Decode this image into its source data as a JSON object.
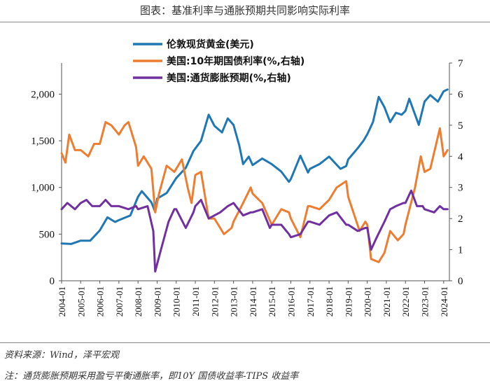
{
  "header": {
    "title": "图表：基准利率与通胀预期共同影响实际利率"
  },
  "footer": {
    "source": "资料来源：Wind，泽平宏观",
    "note": "注：通货膨胀预期采用盈亏平衡通胀率，即10Y 国债收益率-TIPS 收益率"
  },
  "chart_data": {
    "type": "line",
    "title": "图表：基准利率与通胀预期共同影响实际利率",
    "x_labels": [
      "2004-01",
      "2005-01",
      "2006-01",
      "2007-01",
      "2008-01",
      "2009-01",
      "2010-01",
      "2011-01",
      "2012-01",
      "2013-01",
      "2014-01",
      "2015-01",
      "2016-01",
      "2017-01",
      "2018-01",
      "2019-01",
      "2020-01",
      "2021-01",
      "2022-01",
      "2023-01",
      "2024-01"
    ],
    "x_range": [
      2004.0,
      2024.3
    ],
    "y_left": {
      "min": 0,
      "max": 2333.33,
      "ticks": [
        0,
        500,
        1000,
        1500,
        2000
      ],
      "tick_labels": [
        "0",
        "500",
        "1,000",
        "1,500",
        "2,000"
      ]
    },
    "y_right": {
      "min": 0,
      "max": 7,
      "ticks": [
        0,
        1,
        2,
        3,
        4,
        5,
        6,
        7
      ],
      "tick_labels": [
        "0",
        "1",
        "2",
        "3",
        "4",
        "5",
        "6",
        "7"
      ]
    },
    "series": [
      {
        "name": "伦敦现货黄金(美元)",
        "axis": "left",
        "color": "#1f77b4",
        "points": [
          [
            2004.0,
            400
          ],
          [
            2004.5,
            395
          ],
          [
            2005.0,
            430
          ],
          [
            2005.5,
            430
          ],
          [
            2006.0,
            540
          ],
          [
            2006.4,
            680
          ],
          [
            2006.8,
            630
          ],
          [
            2007.0,
            650
          ],
          [
            2007.6,
            700
          ],
          [
            2008.0,
            900
          ],
          [
            2008.2,
            960
          ],
          [
            2008.7,
            840
          ],
          [
            2008.9,
            740
          ],
          [
            2009.0,
            880
          ],
          [
            2009.5,
            940
          ],
          [
            2010.0,
            1100
          ],
          [
            2010.5,
            1210
          ],
          [
            2010.9,
            1390
          ],
          [
            2011.3,
            1500
          ],
          [
            2011.7,
            1780
          ],
          [
            2012.0,
            1660
          ],
          [
            2012.4,
            1590
          ],
          [
            2012.7,
            1740
          ],
          [
            2013.0,
            1670
          ],
          [
            2013.3,
            1450
          ],
          [
            2013.5,
            1250
          ],
          [
            2013.8,
            1330
          ],
          [
            2014.0,
            1240
          ],
          [
            2014.5,
            1310
          ],
          [
            2015.0,
            1250
          ],
          [
            2015.5,
            1170
          ],
          [
            2015.9,
            1060
          ],
          [
            2016.0,
            1090
          ],
          [
            2016.5,
            1340
          ],
          [
            2016.9,
            1160
          ],
          [
            2017.0,
            1200
          ],
          [
            2017.5,
            1250
          ],
          [
            2018.0,
            1330
          ],
          [
            2018.6,
            1200
          ],
          [
            2018.9,
            1230
          ],
          [
            2019.0,
            1300
          ],
          [
            2019.5,
            1420
          ],
          [
            2019.8,
            1500
          ],
          [
            2020.0,
            1570
          ],
          [
            2020.3,
            1700
          ],
          [
            2020.6,
            1970
          ],
          [
            2020.9,
            1860
          ],
          [
            2021.2,
            1700
          ],
          [
            2021.5,
            1800
          ],
          [
            2021.8,
            1780
          ],
          [
            2022.0,
            1820
          ],
          [
            2022.2,
            1950
          ],
          [
            2022.7,
            1670
          ],
          [
            2023.0,
            1920
          ],
          [
            2023.3,
            1990
          ],
          [
            2023.7,
            1920
          ],
          [
            2024.0,
            2030
          ],
          [
            2024.2,
            2050
          ]
        ]
      },
      {
        "name": "美国:10年期国债利率(%,右轴)",
        "axis": "right",
        "color": "#ed7d31",
        "points": [
          [
            2004.0,
            4.1
          ],
          [
            2004.2,
            3.8
          ],
          [
            2004.4,
            4.7
          ],
          [
            2004.7,
            4.2
          ],
          [
            2005.0,
            4.2
          ],
          [
            2005.4,
            4.0
          ],
          [
            2005.7,
            4.4
          ],
          [
            2006.0,
            4.4
          ],
          [
            2006.3,
            5.1
          ],
          [
            2006.6,
            5.0
          ],
          [
            2007.0,
            4.7
          ],
          [
            2007.3,
            5.0
          ],
          [
            2007.5,
            5.1
          ],
          [
            2007.9,
            4.3
          ],
          [
            2008.0,
            3.7
          ],
          [
            2008.3,
            4.0
          ],
          [
            2008.7,
            3.6
          ],
          [
            2008.9,
            2.2
          ],
          [
            2009.1,
            2.8
          ],
          [
            2009.5,
            3.7
          ],
          [
            2009.9,
            3.5
          ],
          [
            2010.3,
            3.9
          ],
          [
            2010.6,
            3.0
          ],
          [
            2010.8,
            2.5
          ],
          [
            2011.0,
            3.4
          ],
          [
            2011.3,
            3.5
          ],
          [
            2011.7,
            2.0
          ],
          [
            2012.0,
            2.0
          ],
          [
            2012.5,
            1.5
          ],
          [
            2012.9,
            1.7
          ],
          [
            2013.0,
            1.9
          ],
          [
            2013.5,
            2.5
          ],
          [
            2013.9,
            3.0
          ],
          [
            2014.0,
            2.8
          ],
          [
            2014.5,
            2.5
          ],
          [
            2015.0,
            1.8
          ],
          [
            2015.5,
            2.3
          ],
          [
            2015.9,
            2.2
          ],
          [
            2016.0,
            2.0
          ],
          [
            2016.5,
            1.4
          ],
          [
            2016.9,
            2.4
          ],
          [
            2017.0,
            2.4
          ],
          [
            2017.5,
            2.3
          ],
          [
            2018.0,
            2.6
          ],
          [
            2018.4,
            3.0
          ],
          [
            2018.9,
            3.2
          ],
          [
            2019.0,
            2.7
          ],
          [
            2019.6,
            1.6
          ],
          [
            2019.9,
            1.9
          ],
          [
            2020.0,
            1.8
          ],
          [
            2020.2,
            0.7
          ],
          [
            2020.6,
            0.6
          ],
          [
            2020.9,
            0.9
          ],
          [
            2021.2,
            1.6
          ],
          [
            2021.6,
            1.3
          ],
          [
            2021.9,
            1.5
          ],
          [
            2022.0,
            1.8
          ],
          [
            2022.5,
            3.0
          ],
          [
            2022.8,
            4.0
          ],
          [
            2023.0,
            3.5
          ],
          [
            2023.3,
            3.6
          ],
          [
            2023.8,
            4.9
          ],
          [
            2024.0,
            4.0
          ],
          [
            2024.2,
            4.2
          ]
        ]
      },
      {
        "name": "美国:通货膨胀预期(%,右轴)",
        "axis": "right",
        "color": "#7030a0",
        "points": [
          [
            2004.0,
            2.3
          ],
          [
            2004.3,
            2.5
          ],
          [
            2004.7,
            2.3
          ],
          [
            2005.0,
            2.5
          ],
          [
            2005.3,
            2.6
          ],
          [
            2005.6,
            2.4
          ],
          [
            2006.0,
            2.4
          ],
          [
            2006.3,
            2.6
          ],
          [
            2006.6,
            2.4
          ],
          [
            2007.0,
            2.4
          ],
          [
            2007.5,
            2.3
          ],
          [
            2007.9,
            2.4
          ],
          [
            2008.0,
            2.3
          ],
          [
            2008.5,
            2.4
          ],
          [
            2008.8,
            1.6
          ],
          [
            2008.9,
            0.3
          ],
          [
            2009.2,
            1.0
          ],
          [
            2009.6,
            1.9
          ],
          [
            2009.9,
            2.3
          ],
          [
            2010.0,
            2.3
          ],
          [
            2010.5,
            1.7
          ],
          [
            2010.9,
            2.2
          ],
          [
            2011.0,
            2.4
          ],
          [
            2011.3,
            2.6
          ],
          [
            2011.7,
            2.0
          ],
          [
            2012.0,
            2.1
          ],
          [
            2012.3,
            2.2
          ],
          [
            2012.7,
            2.4
          ],
          [
            2013.0,
            2.5
          ],
          [
            2013.5,
            2.1
          ],
          [
            2013.9,
            2.2
          ],
          [
            2014.0,
            2.2
          ],
          [
            2014.5,
            2.3
          ],
          [
            2014.9,
            1.7
          ],
          [
            2015.0,
            1.8
          ],
          [
            2015.5,
            1.8
          ],
          [
            2015.9,
            1.5
          ],
          [
            2016.0,
            1.4
          ],
          [
            2016.5,
            1.5
          ],
          [
            2016.9,
            1.9
          ],
          [
            2017.0,
            1.9
          ],
          [
            2017.5,
            1.8
          ],
          [
            2018.0,
            2.1
          ],
          [
            2018.4,
            2.2
          ],
          [
            2018.9,
            1.8
          ],
          [
            2019.0,
            1.8
          ],
          [
            2019.5,
            1.6
          ],
          [
            2019.9,
            1.7
          ],
          [
            2020.0,
            1.7
          ],
          [
            2020.2,
            1.0
          ],
          [
            2020.5,
            1.4
          ],
          [
            2020.9,
            1.9
          ],
          [
            2021.2,
            2.3
          ],
          [
            2021.5,
            2.4
          ],
          [
            2021.9,
            2.5
          ],
          [
            2022.0,
            2.5
          ],
          [
            2022.3,
            2.9
          ],
          [
            2022.6,
            2.4
          ],
          [
            2022.9,
            2.4
          ],
          [
            2023.0,
            2.3
          ],
          [
            2023.5,
            2.2
          ],
          [
            2023.8,
            2.4
          ],
          [
            2024.0,
            2.3
          ],
          [
            2024.2,
            2.3
          ]
        ]
      }
    ],
    "legend": [
      "伦敦现货黄金(美元)",
      "美国:10年期国债利率(%,右轴)",
      "美国:通货膨胀预期(%,右轴)"
    ],
    "legend_position": "top-left",
    "grid": false
  }
}
